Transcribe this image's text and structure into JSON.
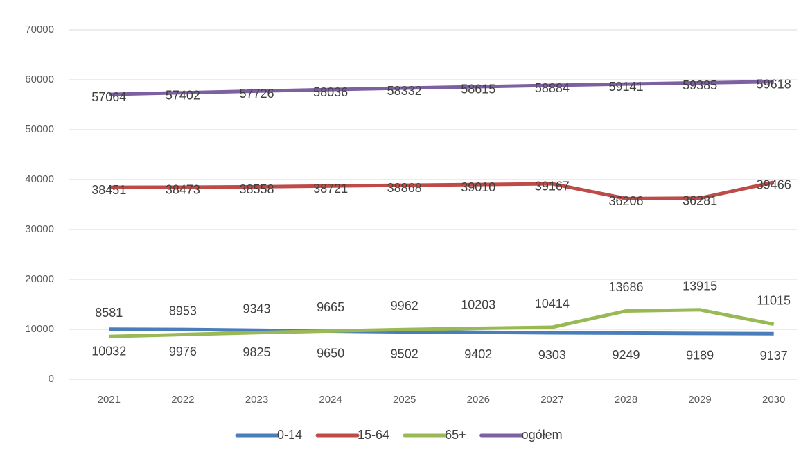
{
  "chart_data": {
    "type": "line",
    "categories": [
      "2021",
      "2022",
      "2023",
      "2024",
      "2025",
      "2026",
      "2027",
      "2028",
      "2029",
      "2030"
    ],
    "series": [
      {
        "name": "0-14",
        "color": "#4a7ebb",
        "values": [
          10032,
          9976,
          9825,
          9650,
          9502,
          9402,
          9303,
          9249,
          9189,
          9137
        ]
      },
      {
        "name": "15-64",
        "color": "#be4b48",
        "values": [
          38451,
          38473,
          38558,
          38721,
          38868,
          39010,
          39167,
          36206,
          36281,
          39466
        ]
      },
      {
        "name": "65+",
        "color": "#98b954",
        "values": [
          8581,
          8953,
          9343,
          9665,
          9962,
          10203,
          10414,
          13686,
          13915,
          11015
        ]
      },
      {
        "name": "ogółem",
        "color": "#7d60a0",
        "values": [
          57064,
          57402,
          57726,
          58036,
          58332,
          58615,
          58884,
          59141,
          59385,
          59618
        ]
      }
    ],
    "ylim": [
      0,
      70000
    ],
    "yticks": [
      0,
      10000,
      20000,
      30000,
      40000,
      50000,
      60000,
      70000
    ],
    "grid": true,
    "legend": "bottom"
  }
}
